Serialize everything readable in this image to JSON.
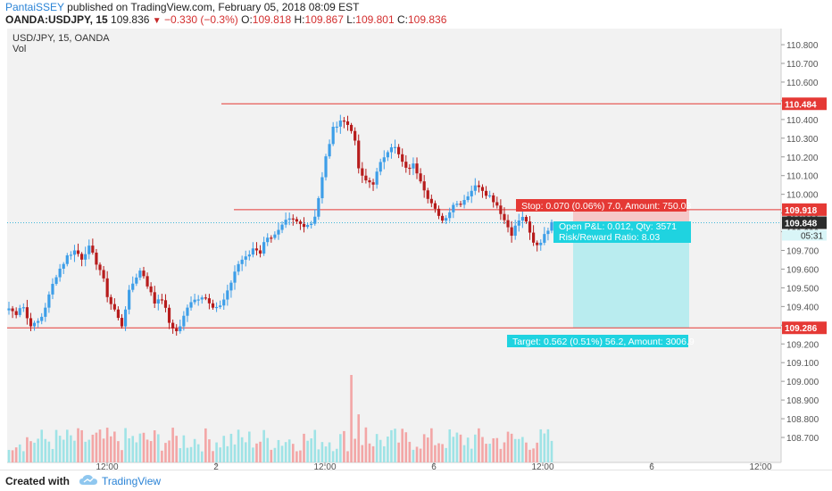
{
  "header": {
    "author": "PantaiSSEY",
    "published": "published on TradingView.com, February 05, 2018 08:09 EST",
    "symbol": "OANDA:USDJPY, 15",
    "last": "109.836",
    "change": "−0.330 (−0.3%)",
    "o_label": "O:",
    "o_value": "109.818",
    "h_label": "H:",
    "h_value": "109.867",
    "l_label": "L:",
    "l_value": "109.801",
    "c_label": "C:",
    "c_value": "109.836"
  },
  "footer": {
    "created_with": "Created with",
    "brand": "TradingView"
  },
  "colors": {
    "up": "#3d9ee8",
    "down": "#b71c1c",
    "vol_up": "#9fe3e6",
    "vol_down": "#f3a6a6",
    "level": "#e53935",
    "stop_zone": "#f6c8c8",
    "target_zone": "#b9ecef",
    "price_line": "#3fb6d8",
    "chart_bg": "#f2f2f2",
    "pane_bg": "#ffffff"
  },
  "chart_data": {
    "type": "candlestick",
    "pane_title": "USD/JPY, 15, OANDA",
    "volume_title": "Vol",
    "x_ticks": [
      "12:00",
      "2",
      "12:00",
      "6",
      "12:00",
      "6",
      "12:00"
    ],
    "y_ticks": [
      "110.800",
      "110.700",
      "110.600",
      "110.500",
      "110.400",
      "110.300",
      "110.200",
      "110.100",
      "110.000",
      "109.900",
      "109.800",
      "109.700",
      "109.600",
      "109.500",
      "109.400",
      "109.300",
      "109.200",
      "109.100",
      "109.000",
      "108.900",
      "108.800",
      "108.700"
    ],
    "ylim": [
      108.68,
      110.86
    ],
    "close_path": [
      109.39,
      109.36,
      109.42,
      109.31,
      109.3,
      109.35,
      109.45,
      109.56,
      109.62,
      109.68,
      109.7,
      109.66,
      109.72,
      109.65,
      109.58,
      109.44,
      109.38,
      109.29,
      109.46,
      109.55,
      109.6,
      109.51,
      109.42,
      109.46,
      109.34,
      109.25,
      109.31,
      109.4,
      109.43,
      109.46,
      109.44,
      109.4,
      109.4,
      109.47,
      109.58,
      109.65,
      109.66,
      109.72,
      109.69,
      109.78,
      109.77,
      109.81,
      109.86,
      109.86,
      109.84,
      109.84,
      109.85,
      110.02,
      110.22,
      110.35,
      110.4,
      110.38,
      110.34,
      110.1,
      110.07,
      110.06,
      110.15,
      110.23,
      110.27,
      110.2,
      110.13,
      110.16,
      110.1,
      110.01,
      109.94,
      109.87,
      109.87,
      109.95,
      109.95,
      109.98,
      110.03,
      110.05,
      110.01,
      109.98,
      109.93,
      109.85,
      109.79,
      109.86,
      109.88,
      109.74,
      109.72,
      109.8,
      109.84
    ],
    "candle_count": 150,
    "levels": [
      {
        "price": 110.484,
        "label": "110.484"
      },
      {
        "price": 109.918,
        "label": "109.918"
      },
      {
        "price": 109.286,
        "label": "109.286"
      }
    ],
    "last_price": {
      "price": 109.848,
      "label": "109.848",
      "timer": "05:31"
    },
    "position": {
      "entry": 109.848,
      "stop": 109.918,
      "target": 109.286,
      "stop_text": "Stop: 0.070 (0.06%) 7.0, Amount: 750.03",
      "pnl_text": "Open P&L: 0.012, Qty: 3571",
      "rr_text": "Risk/Reward Ratio: 8.03",
      "target_text": "Target: 0.562 (0.51%) 56.2, Amount: 3006.9"
    },
    "volume": {
      "ylim": [
        0,
        1
      ],
      "spikes": [
        {
          "index": 94,
          "value": 1.0
        },
        {
          "index": 96,
          "value": 0.55
        },
        {
          "index": 98,
          "value": 0.4
        }
      ]
    }
  }
}
